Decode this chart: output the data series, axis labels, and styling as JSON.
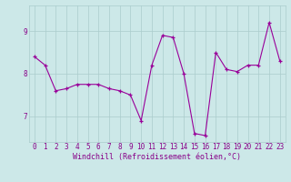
{
  "xlabel": "Windchill (Refroidissement éolien,°C)",
  "x_values": [
    0,
    1,
    2,
    3,
    4,
    5,
    6,
    7,
    8,
    9,
    10,
    11,
    12,
    13,
    14,
    15,
    16,
    17,
    18,
    19,
    20,
    21,
    22,
    23
  ],
  "y_values": [
    8.4,
    8.2,
    7.6,
    7.65,
    7.75,
    7.75,
    7.75,
    7.65,
    7.6,
    7.5,
    6.9,
    8.2,
    8.9,
    8.85,
    8.0,
    6.6,
    6.55,
    8.5,
    8.1,
    8.05,
    8.2,
    8.2,
    9.2,
    8.3
  ],
  "line_color": "#990099",
  "bg_color": "#cce8e8",
  "grid_color": "#aacccc",
  "tick_color": "#880088",
  "label_color": "#880088",
  "ylim": [
    6.4,
    9.6
  ],
  "yticks": [
    7,
    8,
    9
  ],
  "xlim": [
    -0.5,
    23.5
  ],
  "xticks": [
    0,
    1,
    2,
    3,
    4,
    5,
    6,
    7,
    8,
    9,
    10,
    11,
    12,
    13,
    14,
    15,
    16,
    17,
    18,
    19,
    20,
    21,
    22,
    23
  ],
  "xlabel_fontsize": 6.0,
  "tick_fontsize": 5.5
}
